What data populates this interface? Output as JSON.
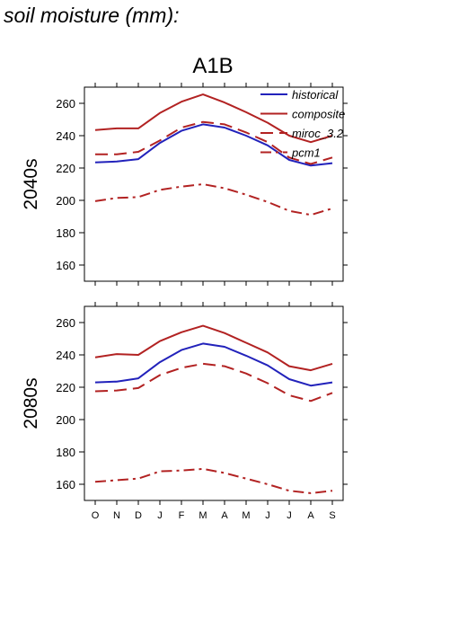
{
  "page_title": "soil moisture (mm):",
  "chart_data": {
    "type": "line",
    "column_title": "A1B",
    "x": [
      "O",
      "N",
      "D",
      "J",
      "F",
      "M",
      "A",
      "M",
      "J",
      "J",
      "A",
      "S"
    ],
    "ylim": [
      150,
      270
    ],
    "yticks": [
      160,
      180,
      200,
      220,
      240,
      260
    ],
    "grid": false,
    "legend_position": "top-right",
    "legend": [
      {
        "name": "historical",
        "color": "#2222bb",
        "style": "solid"
      },
      {
        "name": "composite",
        "color": "#b22222",
        "style": "solid"
      },
      {
        "name": "miroc_3.2",
        "color": "#b22222",
        "style": "dashed"
      },
      {
        "name": "pcm1",
        "color": "#b22222",
        "style": "dashdot"
      }
    ],
    "panels": [
      {
        "label": "2040s",
        "series": [
          {
            "name": "historical",
            "values": [
              223.5,
              224,
              225.5,
              235.5,
              243,
              247,
              245,
              240,
              234,
              225,
              221.5,
              223
            ]
          },
          {
            "name": "composite",
            "values": [
              243.5,
              244.5,
              244.5,
              254,
              261,
              265.5,
              260.5,
              254.5,
              248,
              240,
              236,
              240
            ]
          },
          {
            "name": "miroc_3.2",
            "values": [
              228.5,
              228.5,
              230,
              237,
              245,
              248.5,
              247,
              242,
              236,
              226.5,
              222.5,
              226.5
            ]
          },
          {
            "name": "pcm1",
            "values": [
              199.5,
              201.5,
              202,
              206.5,
              208.5,
              210,
              207.5,
              203.5,
              199,
              193.5,
              191,
              195
            ]
          }
        ]
      },
      {
        "label": "2080s",
        "series": [
          {
            "name": "historical",
            "values": [
              223,
              223.5,
              225.5,
              235.5,
              243,
              247,
              245,
              239.5,
              233.5,
              225,
              221,
              223
            ]
          },
          {
            "name": "composite",
            "values": [
              238.5,
              240.5,
              240,
              248.5,
              254,
              258,
              253.5,
              247.5,
              241.5,
              233,
              230.5,
              234.5
            ]
          },
          {
            "name": "miroc_3.2",
            "values": [
              217.5,
              218,
              219.5,
              227.5,
              232,
              234.5,
              233,
              228.5,
              222.5,
              215,
              211.5,
              216.5
            ]
          },
          {
            "name": "pcm1",
            "values": [
              161.5,
              162.5,
              163.5,
              168,
              168.5,
              169.5,
              167,
              163.5,
              160,
              156,
              154.5,
              156
            ]
          }
        ]
      }
    ]
  }
}
